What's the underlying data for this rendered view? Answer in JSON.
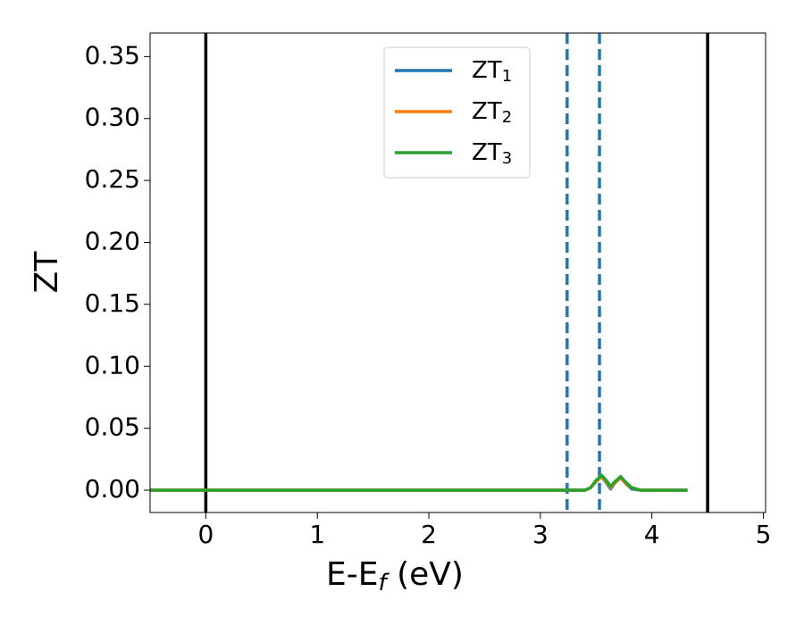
{
  "chart_data": {
    "type": "line",
    "xlabel": {
      "text": "E-E",
      "subscript": "f",
      "suffix": " (eV)"
    },
    "ylabel": "ZT",
    "x": [
      -0.5,
      3.2,
      3.4,
      3.45,
      3.5,
      3.55,
      3.6,
      3.63,
      3.67,
      3.72,
      3.77,
      3.82,
      3.9,
      4.0,
      4.32
    ],
    "series": [
      {
        "name": "ZT",
        "subscript": "1",
        "color": "#1f77b4",
        "values": [
          0,
          0,
          0,
          0.002,
          0.007,
          0.011,
          0.005,
          0.001,
          0.006,
          0.01,
          0.005,
          0.001,
          0,
          0,
          0
        ]
      },
      {
        "name": "ZT",
        "subscript": "2",
        "color": "#ff7f0e",
        "values": [
          0,
          0,
          0,
          0.002,
          0.007,
          0.011,
          0.006,
          0.002,
          0.006,
          0.01,
          0.005,
          0.002,
          0,
          0,
          0
        ]
      },
      {
        "name": "ZT",
        "subscript": "3",
        "color": "#2ca02c",
        "values": [
          0,
          0,
          0,
          0.002,
          0.008,
          0.012,
          0.007,
          0.003,
          0.007,
          0.011,
          0.006,
          0.002,
          0,
          0,
          0
        ]
      }
    ],
    "vlines": [
      {
        "x": 0,
        "color": "#000000",
        "style": "solid"
      },
      {
        "x": 4.5,
        "color": "#000000",
        "style": "solid"
      },
      {
        "x": 3.24,
        "color": "#1f77b4",
        "style": "dashed"
      },
      {
        "x": 3.53,
        "color": "#1f77b4",
        "style": "dashed"
      }
    ],
    "xlim": [
      -0.5,
      5.02
    ],
    "ylim": [
      -0.018,
      0.369
    ],
    "xticks": [
      0,
      1,
      2,
      3,
      4,
      5
    ],
    "yticks": [
      {
        "value": 0,
        "label": "0.00"
      },
      {
        "value": 0.05,
        "label": "0.05"
      },
      {
        "value": 0.1,
        "label": "0.10"
      },
      {
        "value": 0.15,
        "label": "0.15"
      },
      {
        "value": 0.2,
        "label": "0.20"
      },
      {
        "value": 0.25,
        "label": "0.25"
      },
      {
        "value": 0.3,
        "label": "0.30"
      },
      {
        "value": 0.35,
        "label": "0.35"
      }
    ],
    "legend": "upper center",
    "grid": false
  }
}
